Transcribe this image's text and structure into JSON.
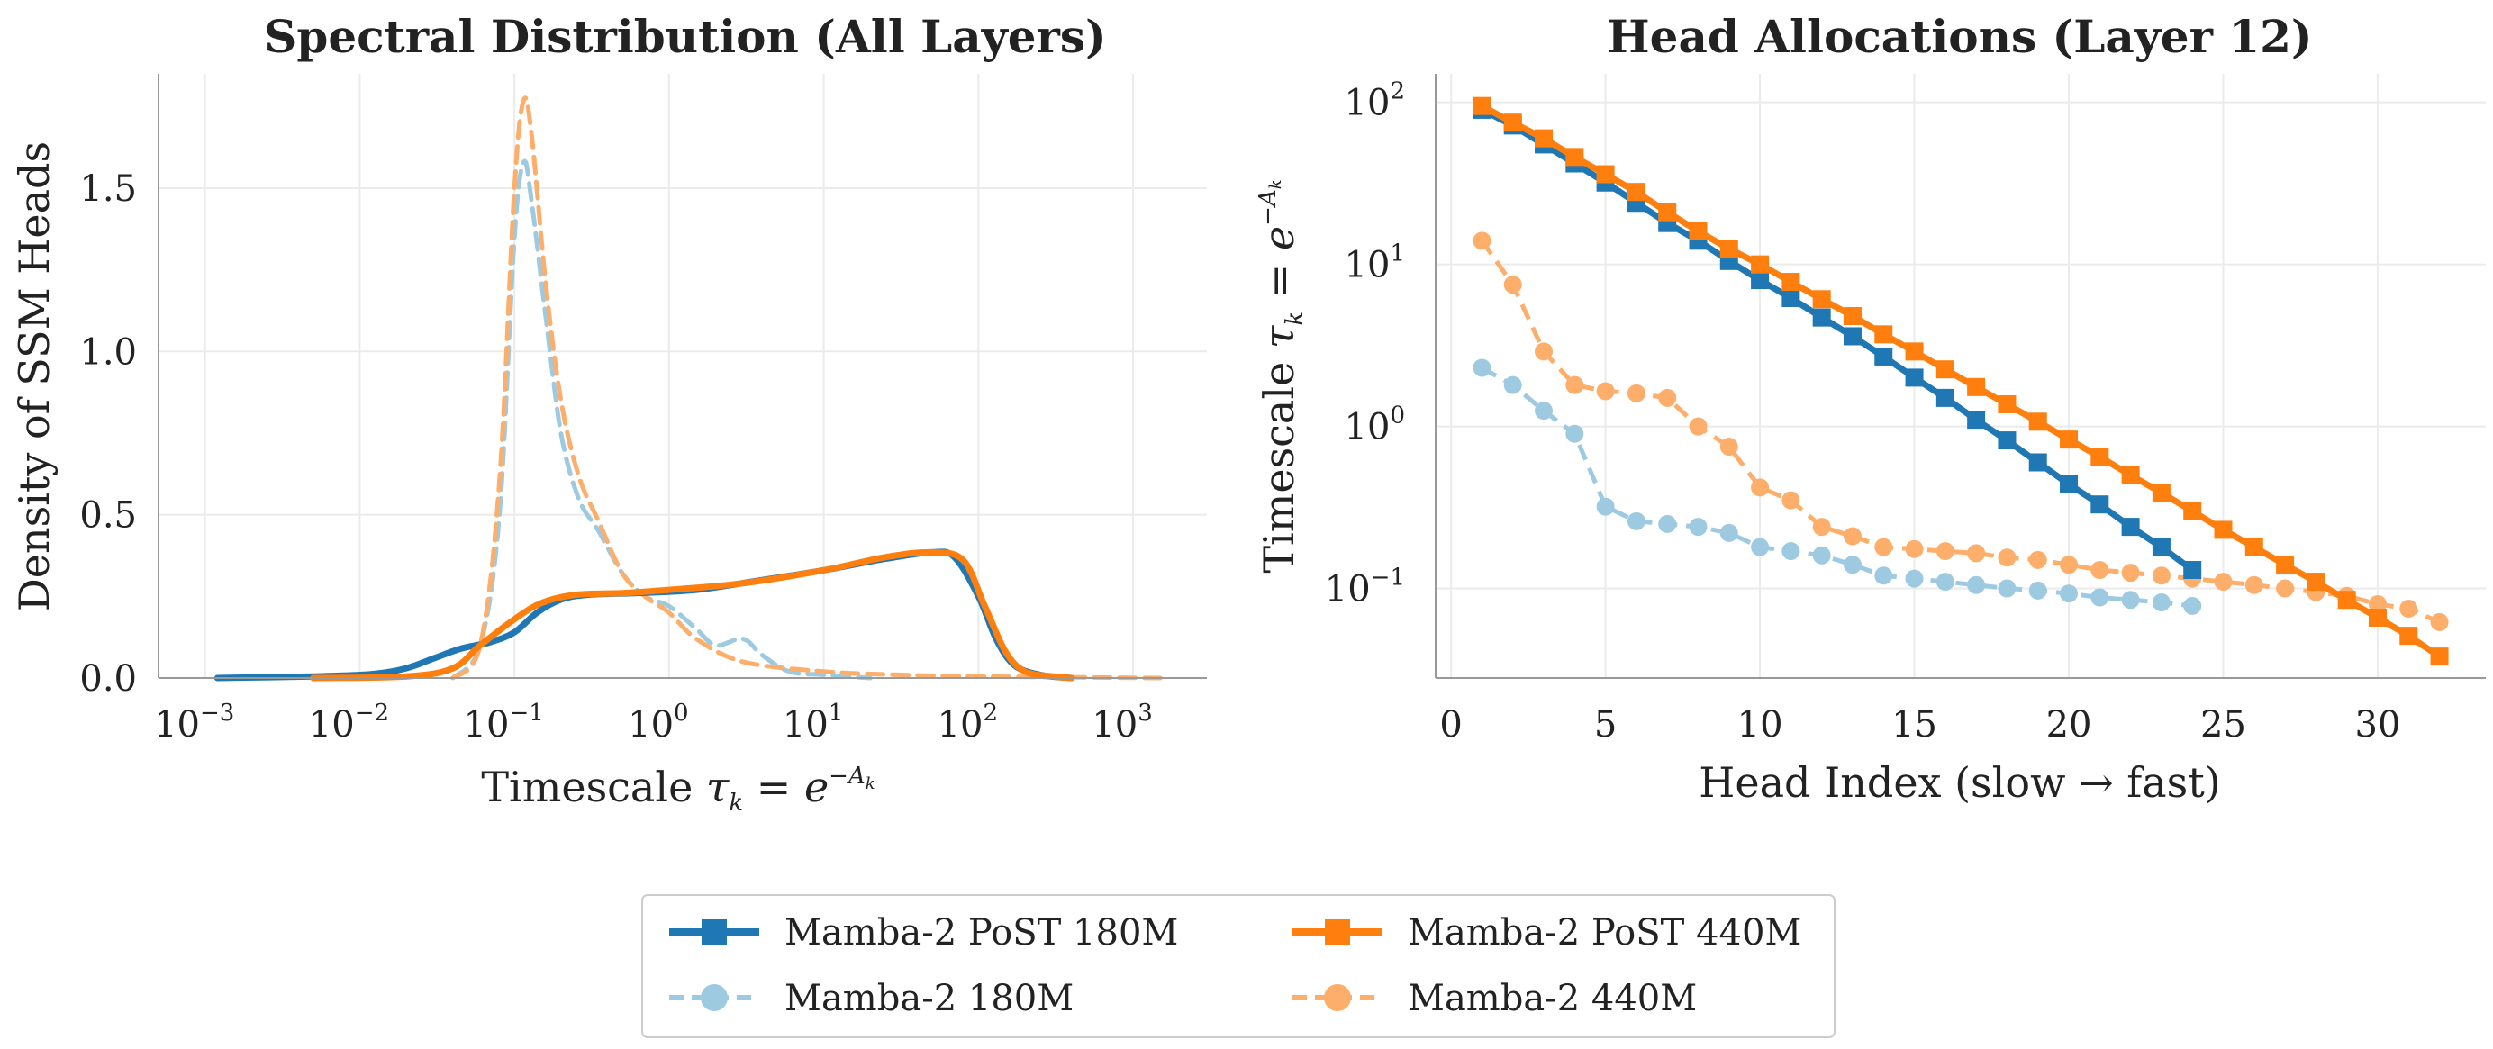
{
  "colors": {
    "post180": "#1f77b4",
    "base180": "#9ecae1",
    "post440": "#ff7f0e",
    "base440": "#fdae6b"
  },
  "chart_data": [
    {
      "type": "line",
      "title": "Spectral Distribution (All Layers)",
      "xlabel": "Timescale τ_k = e^{−A_k}",
      "ylabel": "Density of SSM Heads",
      "xscale": "log",
      "xlim": [
        0.0005,
        3000
      ],
      "ylim": [
        0,
        1.85
      ],
      "xticks": [
        {
          "base": "10",
          "exp": "−3",
          "value": 0.001
        },
        {
          "base": "10",
          "exp": "−2",
          "value": 0.01
        },
        {
          "base": "10",
          "exp": "−1",
          "value": 0.1
        },
        {
          "base": "10",
          "exp": "0",
          "value": 1
        },
        {
          "base": "10",
          "exp": "1",
          "value": 10
        },
        {
          "base": "10",
          "exp": "2",
          "value": 100
        },
        {
          "base": "10",
          "exp": "3",
          "value": 1000
        }
      ],
      "yticks": [
        "0.0",
        "0.5",
        "1.0",
        "1.5"
      ],
      "ytick_values": [
        0,
        0.5,
        1.0,
        1.5
      ],
      "grid": true,
      "series": [
        {
          "name": "Mamba-2 PoST 180M",
          "style": "solid",
          "color_key": "post180",
          "points": [
            [
              0.0012,
              0.0
            ],
            [
              0.005,
              0.005
            ],
            [
              0.012,
              0.012
            ],
            [
              0.02,
              0.03
            ],
            [
              0.03,
              0.06
            ],
            [
              0.045,
              0.09
            ],
            [
              0.07,
              0.11
            ],
            [
              0.1,
              0.14
            ],
            [
              0.14,
              0.2
            ],
            [
              0.2,
              0.24
            ],
            [
              0.3,
              0.255
            ],
            [
              0.6,
              0.26
            ],
            [
              1.5,
              0.27
            ],
            [
              4,
              0.3
            ],
            [
              10,
              0.33
            ],
            [
              25,
              0.365
            ],
            [
              50,
              0.385
            ],
            [
              70,
              0.37
            ],
            [
              100,
              0.25
            ],
            [
              130,
              0.12
            ],
            [
              170,
              0.04
            ],
            [
              250,
              0.01
            ],
            [
              400,
              0.0
            ]
          ]
        },
        {
          "name": "Mamba-2 180M",
          "style": "dashed",
          "color_key": "base180",
          "points": [
            [
              0.04,
              0.0
            ],
            [
              0.06,
              0.1
            ],
            [
              0.08,
              0.5
            ],
            [
              0.1,
              1.35
            ],
            [
              0.115,
              1.58
            ],
            [
              0.13,
              1.45
            ],
            [
              0.16,
              1.1
            ],
            [
              0.2,
              0.75
            ],
            [
              0.26,
              0.55
            ],
            [
              0.35,
              0.45
            ],
            [
              0.5,
              0.32
            ],
            [
              0.7,
              0.25
            ],
            [
              1.0,
              0.22
            ],
            [
              1.5,
              0.15
            ],
            [
              2,
              0.1
            ],
            [
              3,
              0.12
            ],
            [
              4,
              0.07
            ],
            [
              6,
              0.02
            ],
            [
              10,
              0.01
            ],
            [
              20,
              0.0
            ]
          ]
        },
        {
          "name": "Mamba-2 PoST 440M",
          "style": "solid",
          "color_key": "post440",
          "points": [
            [
              0.005,
              0.0
            ],
            [
              0.02,
              0.005
            ],
            [
              0.04,
              0.03
            ],
            [
              0.06,
              0.1
            ],
            [
              0.1,
              0.18
            ],
            [
              0.15,
              0.23
            ],
            [
              0.25,
              0.255
            ],
            [
              0.5,
              0.26
            ],
            [
              1.0,
              0.27
            ],
            [
              3,
              0.29
            ],
            [
              10,
              0.33
            ],
            [
              25,
              0.37
            ],
            [
              50,
              0.385
            ],
            [
              80,
              0.36
            ],
            [
              110,
              0.22
            ],
            [
              150,
              0.08
            ],
            [
              200,
              0.02
            ],
            [
              300,
              0.005
            ],
            [
              400,
              0.0
            ]
          ]
        },
        {
          "name": "Mamba-2 440M",
          "style": "dashed",
          "color_key": "base440",
          "points": [
            [
              0.04,
              0.0
            ],
            [
              0.06,
              0.1
            ],
            [
              0.08,
              0.6
            ],
            [
              0.1,
              1.5
            ],
            [
              0.115,
              1.77
            ],
            [
              0.13,
              1.65
            ],
            [
              0.16,
              1.2
            ],
            [
              0.2,
              0.85
            ],
            [
              0.26,
              0.62
            ],
            [
              0.35,
              0.48
            ],
            [
              0.5,
              0.32
            ],
            [
              0.7,
              0.25
            ],
            [
              1.0,
              0.2
            ],
            [
              1.5,
              0.12
            ],
            [
              3,
              0.05
            ],
            [
              10,
              0.02
            ],
            [
              30,
              0.01
            ],
            [
              100,
              0.005
            ],
            [
              1500,
              0.0
            ]
          ]
        }
      ]
    },
    {
      "type": "line",
      "title": "Head Allocations (Layer 12)",
      "xlabel": "Head Index (slow → fast)",
      "ylabel": "Timescale τ_k = e^{−A_k}",
      "yscale": "log",
      "xlim": [
        -0.5,
        33.5
      ],
      "ylim": [
        0.028,
        150
      ],
      "xticks": [
        0,
        5,
        10,
        15,
        20,
        25,
        30
      ],
      "yticks": [
        {
          "base": "10",
          "exp": "2",
          "value": 100
        },
        {
          "base": "10",
          "exp": "1",
          "value": 10
        },
        {
          "base": "10",
          "exp": "0",
          "value": 1
        },
        {
          "base": "10",
          "exp": "−1",
          "value": 0.1
        }
      ],
      "grid": true,
      "series": [
        {
          "name": "Mamba-2 PoST 180M",
          "style": "solid",
          "marker": "square",
          "color_key": "post180",
          "x": [
            1,
            2,
            3,
            4,
            5,
            6,
            7,
            8,
            9,
            10,
            11,
            12,
            13,
            14,
            15,
            16,
            17,
            18,
            19,
            20,
            21,
            22,
            23,
            24
          ],
          "y": [
            90,
            72,
            55,
            42,
            32,
            24,
            18,
            14,
            10.5,
            8,
            6.2,
            4.7,
            3.6,
            2.7,
            2.0,
            1.5,
            1.1,
            0.82,
            0.6,
            0.44,
            0.33,
            0.24,
            0.18,
            0.13
          ]
        },
        {
          "name": "Mamba-2 180M",
          "style": "dashed",
          "marker": "circle",
          "color_key": "base180",
          "x": [
            1,
            2,
            3,
            4,
            5,
            6,
            7,
            8,
            9,
            10,
            11,
            12,
            13,
            14,
            15,
            16,
            17,
            18,
            19,
            20,
            21,
            22,
            23,
            24
          ],
          "y": [
            2.3,
            1.8,
            1.25,
            0.9,
            0.32,
            0.26,
            0.25,
            0.24,
            0.22,
            0.18,
            0.17,
            0.16,
            0.14,
            0.12,
            0.115,
            0.11,
            0.105,
            0.1,
            0.097,
            0.093,
            0.088,
            0.085,
            0.082,
            0.078
          ]
        },
        {
          "name": "Mamba-2 PoST 440M",
          "style": "solid",
          "marker": "square",
          "color_key": "post440",
          "x": [
            1,
            2,
            3,
            4,
            5,
            6,
            7,
            8,
            9,
            10,
            11,
            12,
            13,
            14,
            15,
            16,
            17,
            18,
            19,
            20,
            21,
            22,
            23,
            24,
            25,
            26,
            27,
            28,
            29,
            30,
            31,
            32
          ],
          "y": [
            95,
            75,
            60,
            46,
            36,
            28,
            21,
            16,
            12.5,
            10,
            7.8,
            6.1,
            4.8,
            3.7,
            2.9,
            2.25,
            1.75,
            1.37,
            1.07,
            0.83,
            0.65,
            0.5,
            0.39,
            0.3,
            0.23,
            0.18,
            0.14,
            0.11,
            0.085,
            0.066,
            0.051,
            0.038
          ]
        },
        {
          "name": "Mamba-2 440M",
          "style": "dashed",
          "marker": "circle",
          "color_key": "base440",
          "x": [
            1,
            2,
            3,
            4,
            5,
            6,
            7,
            8,
            9,
            10,
            11,
            12,
            13,
            14,
            15,
            16,
            17,
            18,
            19,
            20,
            21,
            22,
            23,
            24,
            25,
            26,
            27,
            28,
            29,
            30,
            31,
            32
          ],
          "y": [
            14,
            7.5,
            2.9,
            1.8,
            1.65,
            1.6,
            1.5,
            1.0,
            0.75,
            0.42,
            0.35,
            0.24,
            0.21,
            0.18,
            0.175,
            0.17,
            0.165,
            0.155,
            0.15,
            0.14,
            0.13,
            0.125,
            0.12,
            0.115,
            0.11,
            0.105,
            0.1,
            0.095,
            0.09,
            0.08,
            0.075,
            0.062
          ]
        }
      ]
    }
  ],
  "legend": {
    "placement": "bottom-center",
    "items": [
      {
        "label": "Mamba-2 PoST 180M",
        "color_key": "post180",
        "style": "solid",
        "marker": "square"
      },
      {
        "label": "Mamba-2 180M",
        "color_key": "base180",
        "style": "dashed",
        "marker": "circle"
      },
      {
        "label": "Mamba-2 PoST 440M",
        "color_key": "post440",
        "style": "solid",
        "marker": "square"
      },
      {
        "label": "Mamba-2 440M",
        "color_key": "base440",
        "style": "dashed",
        "marker": "circle"
      }
    ]
  }
}
